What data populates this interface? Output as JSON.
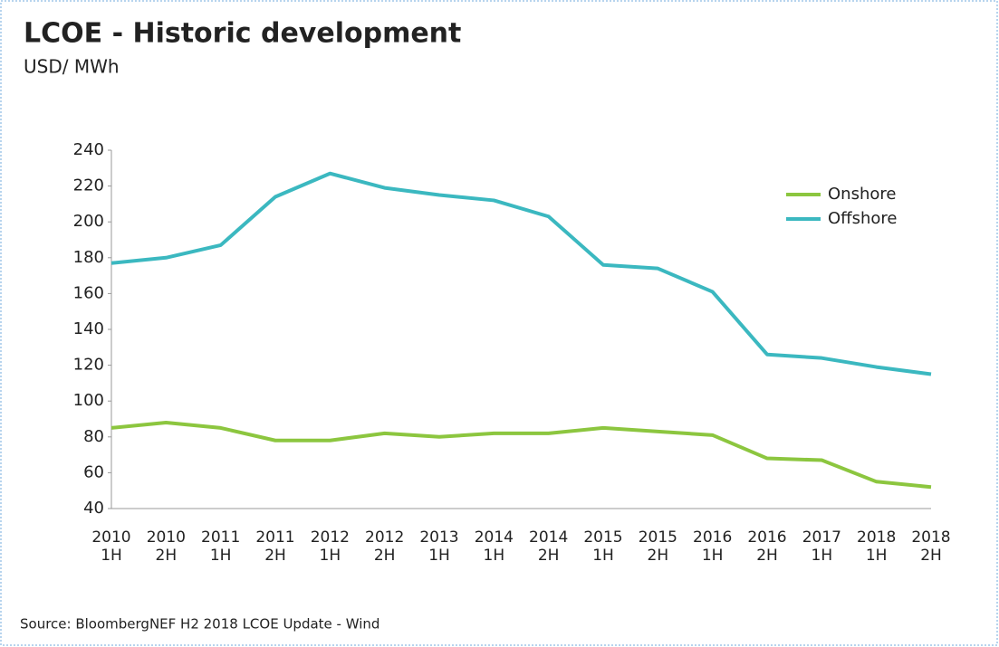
{
  "chart_data": {
    "type": "line",
    "title": "LCOE - Historic development",
    "subtitle": "USD/ MWh",
    "source": "Source: BloombergNEF H2 2018 LCOE Update - Wind",
    "categories": [
      [
        "2010",
        "1H"
      ],
      [
        "2010",
        "2H"
      ],
      [
        "2011",
        "1H"
      ],
      [
        "2011",
        "2H"
      ],
      [
        "2012",
        "1H"
      ],
      [
        "2012",
        "2H"
      ],
      [
        "2013",
        "1H"
      ],
      [
        "2014",
        "1H"
      ],
      [
        "2014",
        "2H"
      ],
      [
        "2015",
        "1H"
      ],
      [
        "2015",
        "2H"
      ],
      [
        "2016",
        "1H"
      ],
      [
        "2016",
        "2H"
      ],
      [
        "2017",
        "1H"
      ],
      [
        "2018",
        "1H"
      ],
      [
        "2018",
        "2H"
      ]
    ],
    "series": [
      {
        "name": "Onshore",
        "color": "#8cc63f",
        "values": [
          85,
          88,
          85,
          78,
          78,
          82,
          80,
          82,
          82,
          85,
          83,
          81,
          68,
          67,
          55,
          52
        ]
      },
      {
        "name": "Offshore",
        "color": "#3bb8c0",
        "values": [
          177,
          180,
          187,
          214,
          227,
          219,
          215,
          212,
          203,
          176,
          174,
          161,
          126,
          124,
          119,
          115
        ]
      }
    ],
    "ylim": [
      40,
      240
    ],
    "yticks": [
      40,
      60,
      80,
      100,
      120,
      140,
      160,
      180,
      200,
      220,
      240
    ],
    "grid": false,
    "legend": "upper right"
  }
}
